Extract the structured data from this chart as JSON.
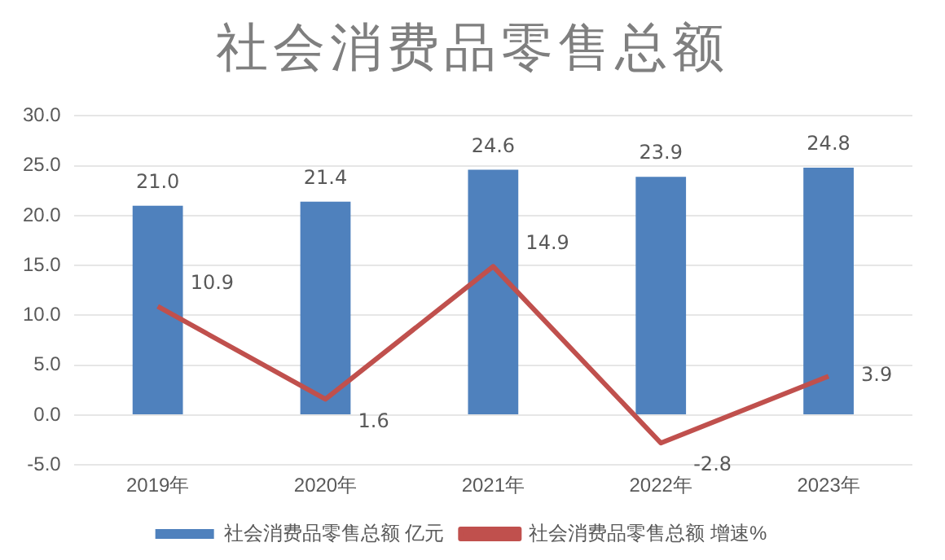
{
  "chart_data": {
    "type": "bar",
    "title": "社会消费品零售总额",
    "categories": [
      "2019年",
      "2020年",
      "2021年",
      "2022年",
      "2023年"
    ],
    "series": [
      {
        "name": "社会消费品零售总额 亿元",
        "color": "#4f81bd",
        "values": [
          21.0,
          21.4,
          24.6,
          23.9,
          24.8
        ],
        "value_labels": [
          "21.0",
          "21.4",
          "24.6",
          "23.9",
          "24.8"
        ]
      },
      {
        "name": "社会消费品零售总额 增速%",
        "type": "line",
        "color": "#c0504d",
        "values": [
          10.9,
          1.6,
          14.9,
          -2.8,
          3.9
        ],
        "value_labels": [
          "10.9",
          "1.6",
          "14.9",
          "-2.8",
          "3.9"
        ]
      }
    ],
    "ylim": [
      -5,
      30
    ],
    "yticks": [
      {
        "value": -5,
        "label": "-5.0"
      },
      {
        "value": 0,
        "label": "0.0"
      },
      {
        "value": 5,
        "label": "5.0"
      },
      {
        "value": 10,
        "label": "10.0"
      },
      {
        "value": 15,
        "label": "15.0"
      },
      {
        "value": 20,
        "label": "20.0"
      },
      {
        "value": 25,
        "label": "25.0"
      },
      {
        "value": 30,
        "label": "30.0"
      }
    ],
    "grid": "y",
    "legend": "bottom",
    "marker": "none"
  }
}
